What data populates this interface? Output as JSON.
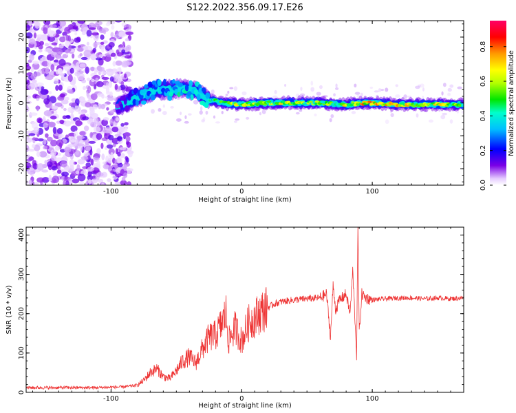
{
  "figure": {
    "title": "S122.2022.356.09.17.E26"
  },
  "colors": {
    "background": "#ffffff",
    "axis": "#000000",
    "snr_line": "#ee3333"
  },
  "chart_data": [
    {
      "type": "heatmap",
      "xlabel": "Height of straight line (km)",
      "ylabel": "Frequency (Hz)",
      "xlim": [
        -165,
        170
      ],
      "ylim": [
        -25,
        25
      ],
      "xticks": [
        -100,
        0,
        100
      ],
      "xtick_labels": [
        "-100",
        "0",
        "100"
      ],
      "yticks": [
        -20,
        -10,
        0,
        10,
        20
      ],
      "ytick_labels": [
        "-20",
        "-10",
        "0",
        "10",
        "20"
      ],
      "colormap": "rainbow",
      "colorbar": {
        "label": "Normalized spectral amplitude",
        "range": [
          0,
          0.95
        ],
        "ticks": [
          0.0,
          0.2,
          0.4,
          0.6,
          0.8
        ],
        "tick_labels": [
          "0.0",
          "0.2",
          "0.4",
          "0.6",
          "0.8"
        ]
      },
      "ridge": {
        "description_points": [
          {
            "x": -95,
            "y": -1.0,
            "amp": 0.15
          },
          {
            "x": -85,
            "y": 0.5,
            "amp": 0.25
          },
          {
            "x": -75,
            "y": 2.5,
            "amp": 0.35
          },
          {
            "x": -65,
            "y": 4.0,
            "amp": 0.4
          },
          {
            "x": -55,
            "y": 4.0,
            "amp": 0.4
          },
          {
            "x": -45,
            "y": 4.5,
            "amp": 0.45
          },
          {
            "x": -35,
            "y": 3.5,
            "amp": 0.4
          },
          {
            "x": -25,
            "y": 1.0,
            "amp": 0.45
          },
          {
            "x": -15,
            "y": 0.0,
            "amp": 0.55
          },
          {
            "x": 0,
            "y": -0.5,
            "amp": 0.7
          },
          {
            "x": 20,
            "y": 0.0,
            "amp": 0.75
          },
          {
            "x": 40,
            "y": 0.0,
            "amp": 0.65
          },
          {
            "x": 60,
            "y": 0.0,
            "amp": 0.6
          },
          {
            "x": 80,
            "y": -0.5,
            "amp": 0.7
          },
          {
            "x": 95,
            "y": 0.0,
            "amp": 0.85
          },
          {
            "x": 120,
            "y": -0.5,
            "amp": 0.75
          },
          {
            "x": 150,
            "y": -0.5,
            "amp": 0.7
          },
          {
            "x": 170,
            "y": -0.5,
            "amp": 0.65
          }
        ]
      },
      "noise_region_x": [
        -165,
        -85
      ]
    },
    {
      "type": "line",
      "xlabel": "Height of straight line (km)",
      "ylabel": "SNR (10 * v/v)",
      "xlim": [
        -165,
        170
      ],
      "ylim": [
        0,
        420
      ],
      "xticks": [
        -100,
        0,
        100
      ],
      "xtick_labels": [
        "-100",
        "0",
        "100"
      ],
      "yticks": [
        0,
        100,
        200,
        300,
        400
      ],
      "ytick_labels": [
        "0",
        "100",
        "200",
        "300",
        "400"
      ],
      "series": [
        {
          "x": [
            -165,
            -150,
            -130,
            -110,
            -90,
            -80,
            -75,
            -70,
            -65,
            -60,
            -55,
            -50,
            -45,
            -40,
            -35,
            -30,
            -25,
            -20,
            -15,
            -12,
            -10,
            -5,
            0,
            5,
            10,
            15,
            20,
            25,
            30,
            40,
            50,
            60,
            65,
            68,
            70,
            72,
            75,
            80,
            83,
            85,
            87,
            88,
            89,
            90,
            92,
            95,
            100,
            110,
            120,
            130,
            140,
            150,
            160,
            170
          ],
          "y": [
            12,
            12,
            12,
            12,
            14,
            18,
            30,
            50,
            60,
            40,
            35,
            55,
            80,
            90,
            75,
            110,
            140,
            145,
            175,
            200,
            130,
            165,
            130,
            175,
            190,
            205,
            215,
            225,
            230,
            235,
            238,
            240,
            250,
            140,
            270,
            210,
            235,
            250,
            200,
            310,
            170,
            95,
            420,
            150,
            250,
            240,
            235,
            238,
            240,
            240,
            238,
            240,
            238,
            240
          ]
        }
      ]
    }
  ]
}
